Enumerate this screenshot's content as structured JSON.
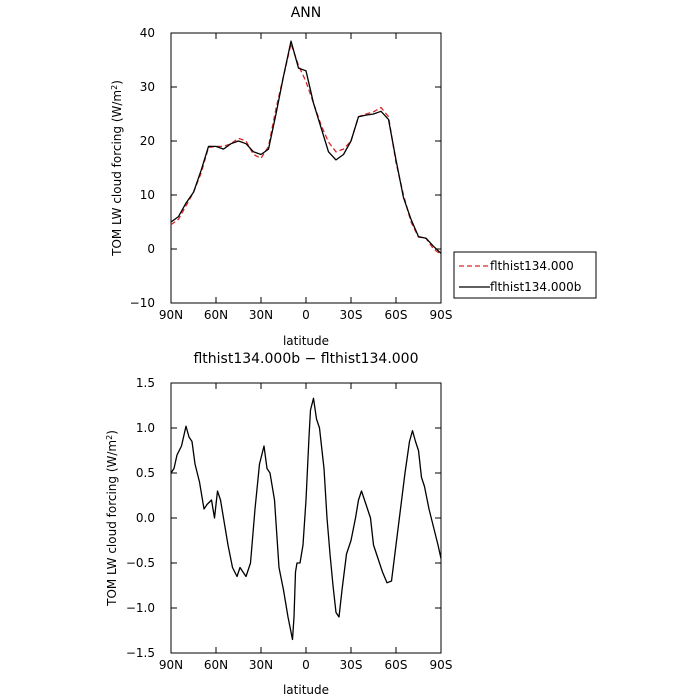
{
  "chart_data": [
    {
      "type": "line",
      "title": "ANN",
      "xlabel": "latitude",
      "ylabel_main": "TOM LW cloud forcing (W/m",
      "ylabel_sup": "2",
      "ylabel_end": ")",
      "xlim": [
        -90,
        90
      ],
      "ylim": [
        -10,
        40
      ],
      "x_ticks": [
        -90,
        -60,
        -30,
        0,
        30,
        60,
        90
      ],
      "x_tick_labels": [
        "90N",
        "60N",
        "30N",
        "0",
        "30S",
        "60S",
        "90S"
      ],
      "y_ticks": [
        -10,
        0,
        10,
        20,
        30,
        40
      ],
      "y_tick_labels": [
        "−10",
        "0",
        "10",
        "20",
        "30",
        "40"
      ],
      "legend": "outside-right",
      "series": [
        {
          "name": "flthist134.000",
          "color": "#d62728",
          "dash": true,
          "x": [
            -90,
            -85,
            -80,
            -75,
            -70,
            -65,
            -60,
            -55,
            -50,
            -45,
            -40,
            -35,
            -30,
            -25,
            -20,
            -15,
            -10,
            -5,
            0,
            5,
            10,
            15,
            20,
            25,
            30,
            35,
            40,
            45,
            50,
            55,
            60,
            65,
            70,
            75,
            80,
            85,
            90
          ],
          "y": [
            4.5,
            5.5,
            8,
            10.5,
            14,
            18.8,
            19,
            19,
            19.5,
            20.5,
            20,
            17.5,
            16.8,
            19,
            26,
            32,
            38,
            34,
            31,
            27,
            23,
            19.8,
            18,
            18.5,
            20,
            24.5,
            25,
            25.4,
            26.2,
            24.5,
            16,
            10,
            5,
            2.2,
            2,
            0,
            -1
          ]
        },
        {
          "name": "flthist134.000b",
          "color": "#000000",
          "dash": false,
          "x": [
            -90,
            -85,
            -80,
            -75,
            -70,
            -65,
            -60,
            -55,
            -50,
            -45,
            -40,
            -35,
            -30,
            -25,
            -20,
            -15,
            -10,
            -5,
            0,
            5,
            10,
            15,
            20,
            25,
            30,
            35,
            40,
            45,
            50,
            55,
            60,
            65,
            70,
            75,
            80,
            85,
            90
          ],
          "y": [
            5,
            6,
            8.5,
            10.5,
            14.5,
            19,
            19,
            18.5,
            19.5,
            20,
            19.5,
            18,
            17.5,
            18.5,
            25,
            32,
            38.5,
            33.5,
            33,
            27,
            22.5,
            18,
            16.5,
            17.5,
            20,
            24.5,
            24.8,
            25,
            25.5,
            24,
            16.5,
            9.5,
            5.5,
            2.3,
            2,
            0.5,
            -0.8
          ]
        }
      ]
    },
    {
      "type": "line",
      "title": "flthist134.000b − flthist134.000",
      "xlabel": "latitude",
      "ylabel_main": "TOM LW cloud forcing (W/m",
      "ylabel_sup": "2",
      "ylabel_end": ")",
      "xlim": [
        -90,
        90
      ],
      "ylim": [
        -1.5,
        1.5
      ],
      "x_ticks": [
        -90,
        -60,
        -30,
        0,
        30,
        60,
        90
      ],
      "x_tick_labels": [
        "90N",
        "60N",
        "30N",
        "0",
        "30S",
        "60S",
        "90S"
      ],
      "y_ticks": [
        -1.5,
        -1.0,
        -0.5,
        0,
        0.5,
        1.0,
        1.5
      ],
      "y_tick_labels": [
        "−1.5",
        "−1.0",
        "−0.5",
        "0.0",
        "0.5",
        "1.0",
        "1.5"
      ],
      "series": [
        {
          "name": "flthist134.000b − flthist134.000",
          "color": "#000000",
          "dash": false,
          "x": [
            -90,
            -88,
            -86,
            -83,
            -80,
            -78,
            -76,
            -74,
            -71,
            -68,
            -66,
            -63,
            -61,
            -59,
            -57,
            -55,
            -52,
            -49,
            -46,
            -44,
            -42,
            -40,
            -37,
            -34,
            -31,
            -28,
            -26,
            -24,
            -21,
            -18,
            -15,
            -12,
            -9,
            -8,
            -7,
            -6,
            -4,
            -2,
            0,
            2,
            3,
            5,
            7,
            9,
            12,
            14,
            16,
            18,
            20,
            22,
            24,
            27,
            30,
            33,
            35,
            37,
            39,
            41,
            43,
            45,
            48,
            51,
            54,
            57,
            60,
            63,
            66,
            69,
            71,
            73,
            75,
            77,
            79,
            82,
            85,
            88,
            90
          ],
          "y": [
            0.5,
            0.55,
            0.7,
            0.8,
            1.02,
            0.9,
            0.85,
            0.6,
            0.4,
            0.1,
            0.15,
            0.2,
            0.0,
            0.3,
            0.2,
            0.0,
            -0.3,
            -0.55,
            -0.65,
            -0.55,
            -0.6,
            -0.65,
            -0.5,
            0.1,
            0.6,
            0.8,
            0.55,
            0.5,
            0.2,
            -0.55,
            -0.8,
            -1.1,
            -1.35,
            -1.1,
            -0.6,
            -0.5,
            -0.5,
            -0.3,
            0.2,
            0.9,
            1.2,
            1.33,
            1.1,
            1.0,
            0.55,
            0.0,
            -0.4,
            -0.75,
            -1.05,
            -1.1,
            -0.8,
            -0.4,
            -0.25,
            0.0,
            0.2,
            0.3,
            0.2,
            0.1,
            0.0,
            -0.3,
            -0.45,
            -0.6,
            -0.72,
            -0.7,
            -0.3,
            0.1,
            0.5,
            0.85,
            0.97,
            0.85,
            0.75,
            0.45,
            0.35,
            0.1,
            -0.1,
            -0.3,
            -0.45
          ]
        }
      ]
    }
  ]
}
